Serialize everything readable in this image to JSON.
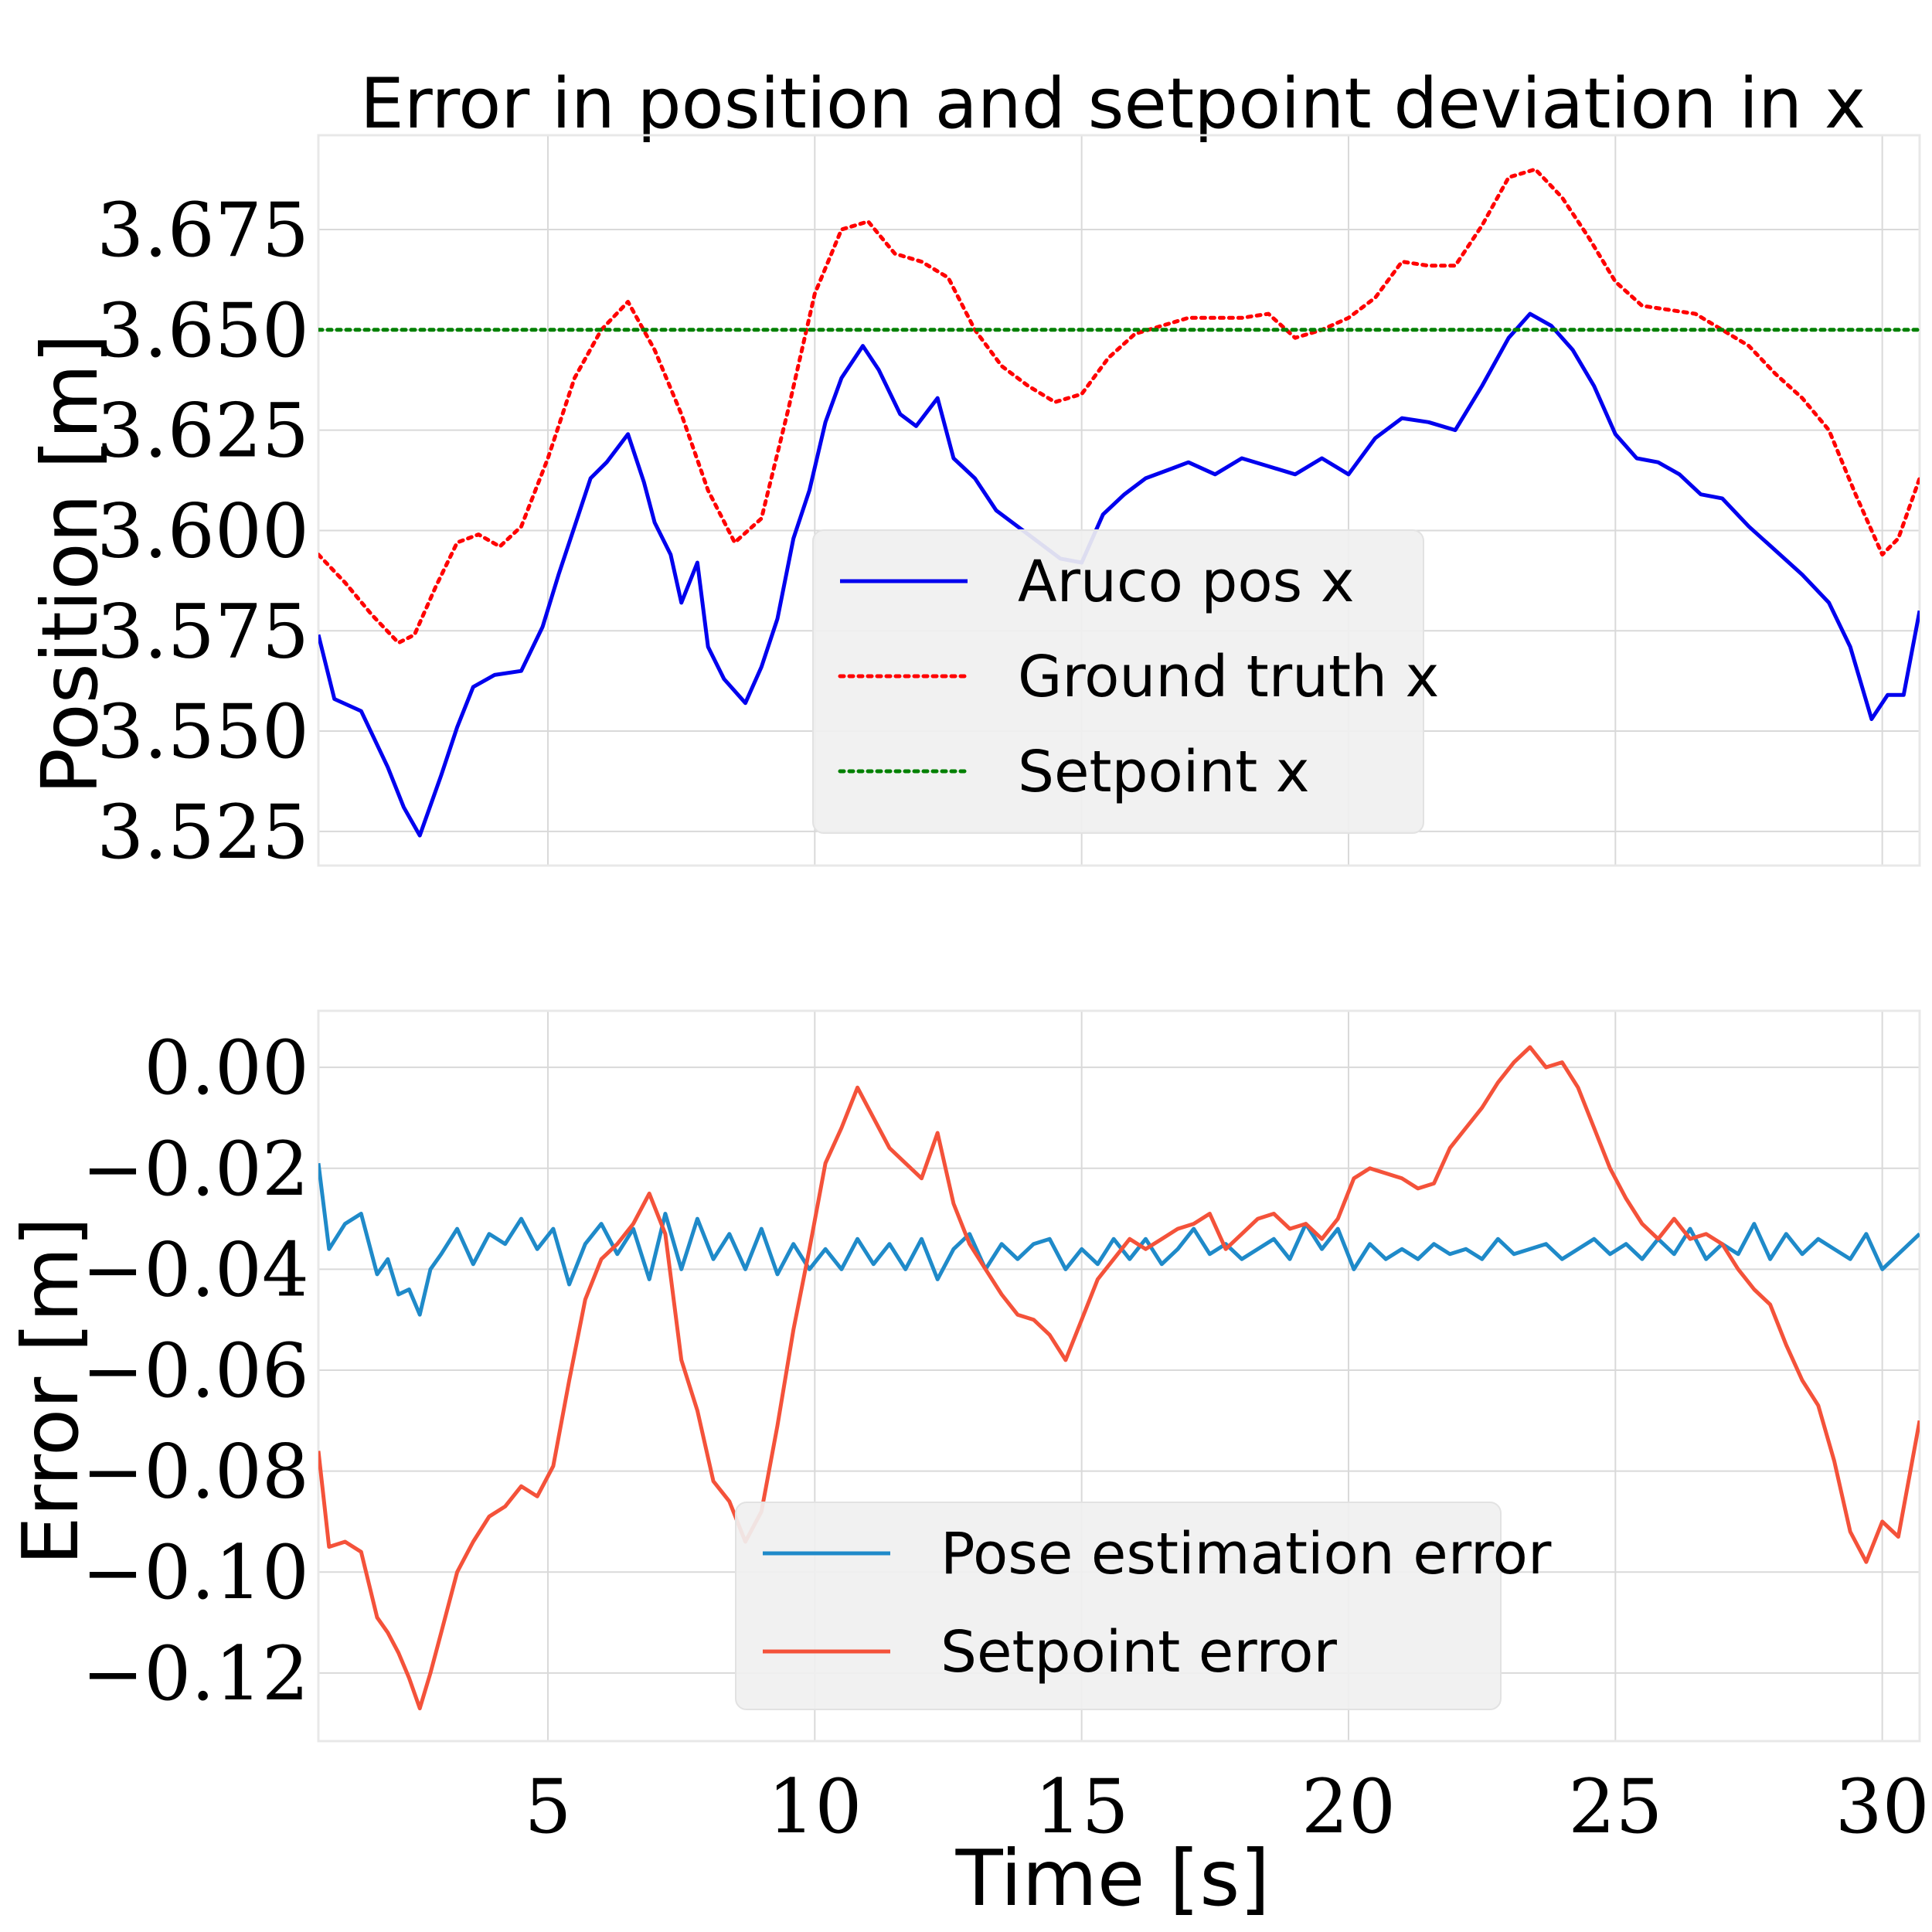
{
  "chart_data": [
    {
      "type": "line",
      "title": "Error in position and setpoint deviation in x",
      "xlabel": "",
      "ylabel": "Position [m]",
      "xlim": [
        0.7,
        30.7
      ],
      "ylim": [
        3.5165,
        3.6985
      ],
      "yticks": [
        3.525,
        3.55,
        3.575,
        3.6,
        3.625,
        3.65,
        3.675
      ],
      "ytick_labels": [
        "3.525",
        "3.550",
        "3.575",
        "3.600",
        "3.625",
        "3.650",
        "3.675"
      ],
      "xticks": [
        5,
        10,
        15,
        20,
        25,
        30
      ],
      "grid": true,
      "legend_position": "center",
      "series": [
        {
          "name": "Aruco pos x",
          "color": "#0000ee",
          "style": "solid",
          "x": [
            0.7,
            1.0,
            1.5,
            2.0,
            2.3,
            2.6,
            3.0,
            3.3,
            3.6,
            4.0,
            4.5,
            4.9,
            5.2,
            5.5,
            5.8,
            6.1,
            6.5,
            6.8,
            7.0,
            7.3,
            7.5,
            7.8,
            8.0,
            8.3,
            8.7,
            9.0,
            9.3,
            9.6,
            9.9,
            10.2,
            10.5,
            10.9,
            11.2,
            11.6,
            11.9,
            12.3,
            12.6,
            13.0,
            13.4,
            13.8,
            14.2,
            14.6,
            15.0,
            15.4,
            15.8,
            16.2,
            16.6,
            17.0,
            17.5,
            18.0,
            18.5,
            19.0,
            19.5,
            20.0,
            20.5,
            21.0,
            21.5,
            22.0,
            22.5,
            23.0,
            23.4,
            23.8,
            24.2,
            24.6,
            25.0,
            25.4,
            25.8,
            26.2,
            26.6,
            27.0,
            27.5,
            28.0,
            28.5,
            29.0,
            29.4,
            29.8,
            30.1,
            30.4,
            30.7
          ],
          "y": [
            3.574,
            3.558,
            3.555,
            3.541,
            3.531,
            3.524,
            3.539,
            3.551,
            3.561,
            3.564,
            3.565,
            3.576,
            3.589,
            3.601,
            3.613,
            3.617,
            3.624,
            3.612,
            3.602,
            3.594,
            3.582,
            3.592,
            3.571,
            3.563,
            3.557,
            3.566,
            3.578,
            3.598,
            3.61,
            3.627,
            3.638,
            3.646,
            3.64,
            3.629,
            3.626,
            3.633,
            3.618,
            3.613,
            3.605,
            3.601,
            3.597,
            3.593,
            3.592,
            3.604,
            3.609,
            3.613,
            3.615,
            3.617,
            3.614,
            3.618,
            3.616,
            3.614,
            3.618,
            3.614,
            3.623,
            3.628,
            3.627,
            3.625,
            3.636,
            3.648,
            3.654,
            3.651,
            3.645,
            3.636,
            3.624,
            3.618,
            3.617,
            3.614,
            3.609,
            3.608,
            3.601,
            3.595,
            3.589,
            3.582,
            3.571,
            3.553,
            3.559,
            3.559,
            3.58
          ]
        },
        {
          "name": "Ground truth x",
          "color": "#ff0000",
          "style": "dotted",
          "x": [
            0.7,
            1.2,
            1.7,
            2.2,
            2.5,
            2.9,
            3.3,
            3.7,
            4.1,
            4.5,
            5.0,
            5.5,
            6.0,
            6.5,
            7.0,
            7.5,
            8.0,
            8.5,
            9.0,
            9.5,
            10.0,
            10.5,
            11.0,
            11.5,
            12.0,
            12.5,
            13.0,
            13.5,
            14.0,
            14.5,
            15.0,
            15.5,
            16.0,
            16.5,
            17.0,
            17.5,
            18.0,
            18.5,
            19.0,
            19.5,
            20.0,
            20.5,
            21.0,
            21.5,
            22.0,
            22.5,
            23.0,
            23.5,
            24.0,
            24.5,
            25.0,
            25.5,
            26.0,
            26.5,
            27.0,
            27.5,
            28.0,
            28.5,
            29.0,
            29.5,
            30.0,
            30.3,
            30.7
          ],
          "y": [
            3.594,
            3.587,
            3.579,
            3.572,
            3.574,
            3.586,
            3.597,
            3.599,
            3.596,
            3.601,
            3.618,
            3.638,
            3.65,
            3.657,
            3.645,
            3.629,
            3.61,
            3.597,
            3.603,
            3.63,
            3.659,
            3.675,
            3.677,
            3.669,
            3.667,
            3.663,
            3.65,
            3.641,
            3.636,
            3.632,
            3.634,
            3.643,
            3.649,
            3.651,
            3.653,
            3.653,
            3.653,
            3.654,
            3.648,
            3.65,
            3.653,
            3.658,
            3.667,
            3.666,
            3.666,
            3.676,
            3.688,
            3.69,
            3.683,
            3.673,
            3.662,
            3.656,
            3.655,
            3.654,
            3.65,
            3.646,
            3.639,
            3.633,
            3.625,
            3.609,
            3.594,
            3.598,
            3.613
          ]
        },
        {
          "name": "Setpoint x",
          "color": "#008000",
          "style": "dotted",
          "x": [
            0.7,
            30.7
          ],
          "y": [
            3.65,
            3.65
          ]
        }
      ]
    },
    {
      "type": "line",
      "title": "",
      "xlabel": "Time [s]",
      "ylabel": "Error [m]",
      "xlim": [
        0.7,
        30.7
      ],
      "ylim": [
        -0.1335,
        0.0112
      ],
      "yticks": [
        -0.12,
        -0.1,
        -0.08,
        -0.06,
        -0.04,
        -0.02,
        0.0
      ],
      "ytick_labels": [
        "−0.12",
        "−0.10",
        "−0.08",
        "−0.06",
        "−0.04",
        "−0.02",
        "0.00"
      ],
      "xticks": [
        5,
        10,
        15,
        20,
        25,
        30
      ],
      "xtick_labels": [
        "5",
        "10",
        "15",
        "20",
        "25",
        "30"
      ],
      "grid": true,
      "legend_position": "lower center",
      "series": [
        {
          "name": "Pose estimation error",
          "color": "#1f8ac9",
          "style": "solid",
          "x": [
            0.7,
            0.9,
            1.2,
            1.5,
            1.8,
            2.0,
            2.2,
            2.4,
            2.6,
            2.8,
            3.0,
            3.3,
            3.6,
            3.9,
            4.2,
            4.5,
            4.8,
            5.1,
            5.4,
            5.7,
            6.0,
            6.3,
            6.6,
            6.9,
            7.2,
            7.5,
            7.8,
            8.1,
            8.4,
            8.7,
            9.0,
            9.3,
            9.6,
            9.9,
            10.2,
            10.5,
            10.8,
            11.1,
            11.4,
            11.7,
            12.0,
            12.3,
            12.6,
            12.9,
            13.2,
            13.5,
            13.8,
            14.1,
            14.4,
            14.7,
            15.0,
            15.3,
            15.6,
            15.9,
            16.2,
            16.5,
            16.8,
            17.1,
            17.4,
            17.7,
            18.0,
            18.3,
            18.6,
            18.9,
            19.2,
            19.5,
            19.8,
            20.1,
            20.4,
            20.7,
            21.0,
            21.3,
            21.6,
            21.9,
            22.2,
            22.5,
            22.8,
            23.1,
            23.4,
            23.7,
            24.0,
            24.3,
            24.6,
            24.9,
            25.2,
            25.5,
            25.8,
            26.1,
            26.4,
            26.7,
            27.0,
            27.3,
            27.6,
            27.9,
            28.2,
            28.5,
            28.8,
            29.1,
            29.4,
            29.7,
            30.0,
            30.3,
            30.7
          ],
          "y": [
            -0.019,
            -0.036,
            -0.031,
            -0.029,
            -0.041,
            -0.038,
            -0.045,
            -0.044,
            -0.049,
            -0.04,
            -0.037,
            -0.032,
            -0.039,
            -0.033,
            -0.035,
            -0.03,
            -0.036,
            -0.032,
            -0.043,
            -0.035,
            -0.031,
            -0.037,
            -0.032,
            -0.042,
            -0.029,
            -0.04,
            -0.03,
            -0.038,
            -0.033,
            -0.04,
            -0.032,
            -0.041,
            -0.035,
            -0.04,
            -0.036,
            -0.04,
            -0.034,
            -0.039,
            -0.035,
            -0.04,
            -0.034,
            -0.042,
            -0.036,
            -0.033,
            -0.04,
            -0.035,
            -0.038,
            -0.035,
            -0.034,
            -0.04,
            -0.036,
            -0.039,
            -0.034,
            -0.038,
            -0.034,
            -0.039,
            -0.036,
            -0.032,
            -0.037,
            -0.035,
            -0.038,
            -0.036,
            -0.034,
            -0.038,
            -0.031,
            -0.036,
            -0.032,
            -0.04,
            -0.035,
            -0.038,
            -0.036,
            -0.038,
            -0.035,
            -0.037,
            -0.036,
            -0.038,
            -0.034,
            -0.037,
            -0.036,
            -0.035,
            -0.038,
            -0.036,
            -0.034,
            -0.037,
            -0.035,
            -0.038,
            -0.034,
            -0.037,
            -0.032,
            -0.038,
            -0.035,
            -0.037,
            -0.031,
            -0.038,
            -0.033,
            -0.037,
            -0.034,
            -0.036,
            -0.038,
            -0.033,
            -0.04,
            -0.037,
            -0.033
          ]
        },
        {
          "name": "Setpoint error",
          "color": "#f4523a",
          "style": "solid",
          "x": [
            0.7,
            0.9,
            1.2,
            1.5,
            1.8,
            2.0,
            2.2,
            2.4,
            2.6,
            2.8,
            3.0,
            3.3,
            3.6,
            3.9,
            4.2,
            4.5,
            4.8,
            5.1,
            5.4,
            5.7,
            6.0,
            6.3,
            6.6,
            6.9,
            7.2,
            7.5,
            7.8,
            8.1,
            8.4,
            8.7,
            9.0,
            9.3,
            9.6,
            9.9,
            10.2,
            10.5,
            10.8,
            11.1,
            11.4,
            11.7,
            12.0,
            12.3,
            12.6,
            12.9,
            13.2,
            13.5,
            13.8,
            14.1,
            14.4,
            14.7,
            15.0,
            15.3,
            15.6,
            15.9,
            16.2,
            16.5,
            16.8,
            17.1,
            17.4,
            17.7,
            18.0,
            18.3,
            18.6,
            18.9,
            19.2,
            19.5,
            19.8,
            20.1,
            20.4,
            20.7,
            21.0,
            21.3,
            21.6,
            21.9,
            22.2,
            22.5,
            22.8,
            23.1,
            23.4,
            23.7,
            24.0,
            24.3,
            24.6,
            24.9,
            25.2,
            25.5,
            25.8,
            26.1,
            26.4,
            26.7,
            27.0,
            27.3,
            27.6,
            27.9,
            28.2,
            28.5,
            28.8,
            29.1,
            29.4,
            29.7,
            30.0,
            30.3,
            30.7
          ],
          "y": [
            -0.076,
            -0.095,
            -0.094,
            -0.096,
            -0.109,
            -0.112,
            -0.116,
            -0.121,
            -0.127,
            -0.12,
            -0.112,
            -0.1,
            -0.094,
            -0.089,
            -0.087,
            -0.083,
            -0.085,
            -0.079,
            -0.062,
            -0.046,
            -0.038,
            -0.035,
            -0.031,
            -0.025,
            -0.033,
            -0.058,
            -0.068,
            -0.082,
            -0.086,
            -0.094,
            -0.088,
            -0.071,
            -0.052,
            -0.036,
            -0.019,
            -0.012,
            -0.004,
            -0.01,
            -0.016,
            -0.019,
            -0.022,
            -0.013,
            -0.027,
            -0.035,
            -0.04,
            -0.045,
            -0.049,
            -0.05,
            -0.053,
            -0.058,
            -0.05,
            -0.042,
            -0.038,
            -0.034,
            -0.036,
            -0.034,
            -0.032,
            -0.031,
            -0.029,
            -0.036,
            -0.033,
            -0.03,
            -0.029,
            -0.032,
            -0.031,
            -0.034,
            -0.03,
            -0.022,
            -0.02,
            -0.021,
            -0.022,
            -0.024,
            -0.023,
            -0.016,
            -0.012,
            -0.008,
            -0.003,
            0.001,
            0.004,
            0.0,
            0.001,
            -0.004,
            -0.012,
            -0.02,
            -0.026,
            -0.031,
            -0.034,
            -0.03,
            -0.034,
            -0.033,
            -0.035,
            -0.04,
            -0.044,
            -0.047,
            -0.055,
            -0.062,
            -0.067,
            -0.078,
            -0.092,
            -0.098,
            -0.09,
            -0.093,
            -0.07
          ]
        }
      ]
    }
  ]
}
